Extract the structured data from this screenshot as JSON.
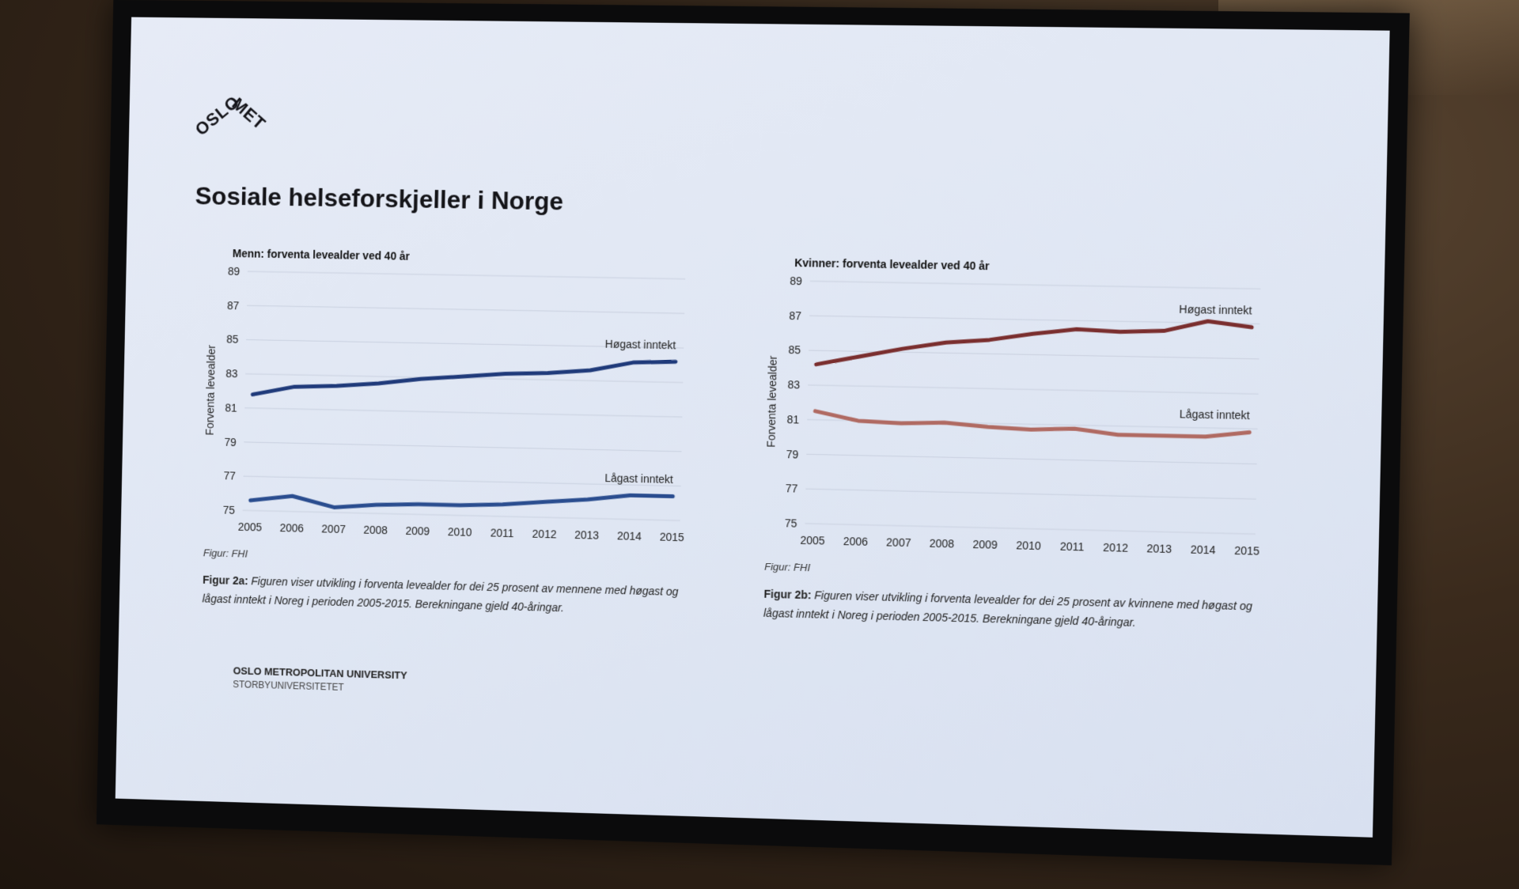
{
  "slide": {
    "logo": "OSLOMET",
    "title": "Sosiale helseforskjeller i Norge",
    "footer_line1": "OSLO METROPOLITAN UNIVERSITY",
    "footer_line2": "STORBYUNIVERSITETET"
  },
  "figures": [
    {
      "source": "Figur: FHI",
      "caption_label": "Figur 2a:",
      "caption_text": "Figuren viser utvikling i forventa levealder for dei 25 prosent av mennene med høgast og lågast inntekt i Noreg i perioden 2005-2015. Berekningane gjeld 40-åringar."
    },
    {
      "source": "Figur: FHI",
      "caption_label": "Figur 2b:",
      "caption_text": "Figuren viser utvikling i forventa levealder for dei 25 prosent av kvinnene med høgast og lågast inntekt i Noreg i perioden 2005-2015. Berekningane gjeld 40-åringar."
    }
  ],
  "chart_data": [
    {
      "type": "line",
      "title": "Menn: forventa levealder ved 40 år",
      "ylabel": "Forventa levealder",
      "xlabel": "",
      "categories": [
        "2005",
        "2006",
        "2007",
        "2008",
        "2009",
        "2010",
        "2011",
        "2012",
        "2013",
        "2014",
        "2015"
      ],
      "yticks": [
        75,
        77,
        79,
        81,
        83,
        85,
        87,
        89
      ],
      "ylim": [
        75,
        89
      ],
      "grid": true,
      "color": "#1f3a7a",
      "series": [
        {
          "name": "Høgast inntekt",
          "values": [
            81.8,
            82.3,
            82.4,
            82.6,
            82.9,
            83.1,
            83.3,
            83.4,
            83.6,
            84.1,
            84.2
          ]
        },
        {
          "name": "Lågast inntekt",
          "values": [
            75.6,
            75.9,
            75.3,
            75.5,
            75.6,
            75.6,
            75.7,
            75.9,
            76.1,
            76.4,
            76.4
          ]
        }
      ]
    },
    {
      "type": "line",
      "title": "Kvinner: forventa levealder ved 40 år",
      "ylabel": "Forventa levealder",
      "xlabel": "",
      "categories": [
        "2005",
        "2006",
        "2007",
        "2008",
        "2009",
        "2010",
        "2011",
        "2012",
        "2013",
        "2014",
        "2015"
      ],
      "yticks": [
        75,
        77,
        79,
        81,
        83,
        85,
        87,
        89
      ],
      "ylim": [
        75,
        89
      ],
      "grid": true,
      "color": "#7a2e2e",
      "series": [
        {
          "name": "Høgast inntekt",
          "values": [
            84.2,
            84.7,
            85.2,
            85.6,
            85.8,
            86.2,
            86.5,
            86.4,
            86.5,
            87.1,
            86.8
          ]
        },
        {
          "name": "Lågast inntekt",
          "values": [
            81.5,
            81.0,
            80.9,
            81.0,
            80.8,
            80.7,
            80.8,
            80.5,
            80.5,
            80.5,
            80.8
          ]
        }
      ]
    }
  ]
}
